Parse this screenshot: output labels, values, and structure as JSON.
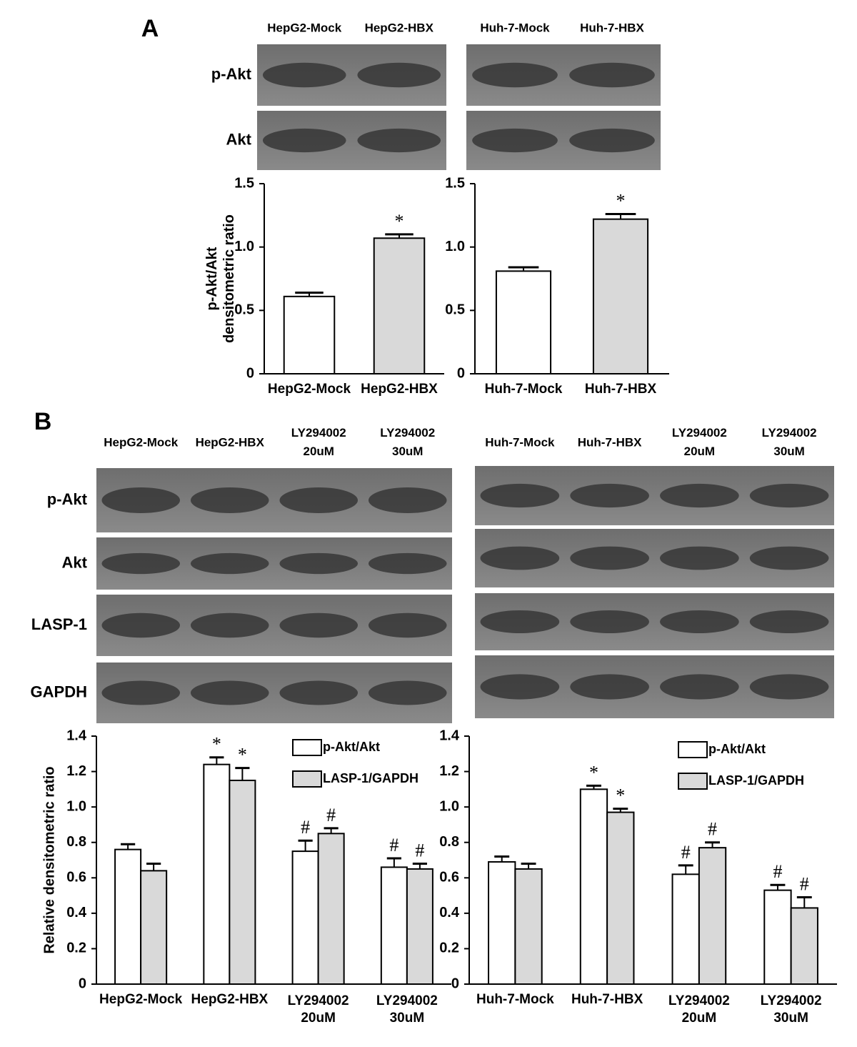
{
  "panels": [
    {
      "label": "A"
    },
    {
      "label": "B"
    }
  ],
  "blots": [
    {
      "lanes": [
        "HepG2-Mock",
        "HepG2-HBX"
      ],
      "rows": [
        "p-Akt",
        "Akt"
      ]
    },
    {
      "lanes": [
        "Huh-7-Mock",
        "Huh-7-HBX"
      ]
    },
    {
      "lanes": [
        "HepG2-Mock",
        "HepG2-HBX",
        "LY294002\n20uM",
        "LY294002\n30uM"
      ],
      "rows": [
        "p-Akt",
        "Akt",
        "LASP-1",
        "GAPDH"
      ]
    },
    {
      "lanes": [
        "Huh-7-Mock",
        "Huh-7-HBX",
        "LY294002\n20uM",
        "LY294002\n30uM"
      ]
    }
  ],
  "chart_data": [
    {
      "type": "bar",
      "y_label": "p-Akt/Akt\ndensitometric ratio",
      "categories": [
        "HepG2-Mock",
        "HepG2-HBX"
      ],
      "values": [
        0.61,
        1.07
      ],
      "errors": [
        0.03,
        0.03
      ],
      "colors": [
        "#ffffff",
        "#d9d9d9"
      ],
      "annotations": [
        null,
        "*"
      ],
      "ylim": [
        0,
        1.5
      ],
      "yticks": [
        0,
        0.5,
        {
          "value": 1,
          "label": "1.0"
        },
        1.5
      ]
    },
    {
      "type": "bar",
      "categories": [
        "Huh-7-Mock",
        "Huh-7-HBX"
      ],
      "values": [
        0.81,
        1.22
      ],
      "errors": [
        0.03,
        0.04
      ],
      "colors": [
        "#ffffff",
        "#d9d9d9"
      ],
      "annotations": [
        null,
        "*"
      ],
      "ylim": [
        0,
        1.5
      ],
      "yticks": [
        0,
        0.5,
        {
          "value": 1,
          "label": "1.0"
        },
        1.5
      ]
    },
    {
      "type": "bar",
      "y_label": "Relative densitometric ratio",
      "categories": [
        "HepG2-Mock",
        "HepG2-HBX",
        "LY294002\n20uM",
        "LY294002\n30uM"
      ],
      "series": [
        {
          "name": "p-Akt/Akt",
          "color": "#ffffff",
          "values": [
            0.76,
            1.24,
            0.75,
            0.66
          ],
          "errors": [
            0.03,
            0.04,
            0.06,
            0.05
          ],
          "annotations": [
            null,
            "*",
            "#",
            "#"
          ]
        },
        {
          "name": "LASP-1/GAPDH",
          "color": "#d9d9d9",
          "values": [
            0.64,
            1.15,
            0.85,
            0.65
          ],
          "errors": [
            0.04,
            0.07,
            0.03,
            0.03
          ],
          "annotations": [
            null,
            "*",
            "#",
            "#"
          ]
        }
      ],
      "ylim": [
        0,
        1.4
      ],
      "yticks": [
        0,
        0.2,
        0.4,
        0.6,
        0.8,
        {
          "value": 1,
          "label": "1.0"
        },
        1.2,
        1.4
      ]
    },
    {
      "type": "bar",
      "categories": [
        "Huh-7-Mock",
        "Huh-7-HBX",
        "LY294002\n20uM",
        "LY294002\n30uM"
      ],
      "series": [
        {
          "name": "p-Akt/Akt",
          "color": "#ffffff",
          "values": [
            0.69,
            1.1,
            0.62,
            0.53
          ],
          "errors": [
            0.03,
            0.02,
            0.05,
            0.03
          ],
          "annotations": [
            null,
            "*",
            "#",
            "#"
          ]
        },
        {
          "name": "LASP-1/GAPDH",
          "color": "#d9d9d9",
          "values": [
            0.65,
            0.97,
            0.77,
            0.43
          ],
          "errors": [
            0.03,
            0.02,
            0.03,
            0.06
          ],
          "annotations": [
            null,
            "*",
            "#",
            "#"
          ]
        }
      ],
      "ylim": [
        0,
        1.4
      ],
      "yticks": [
        0,
        0.2,
        0.4,
        0.6,
        0.8,
        {
          "value": 1,
          "label": "1.0"
        },
        1.2,
        1.4
      ]
    }
  ]
}
